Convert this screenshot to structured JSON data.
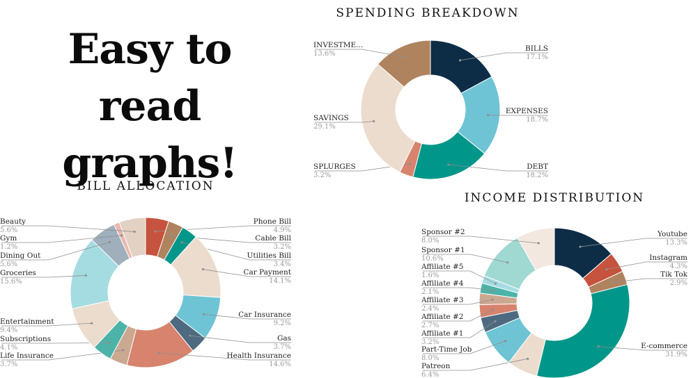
{
  "hero": {
    "line1": "Easy to",
    "line2": "read graphs!"
  },
  "chart_data": [
    {
      "type": "pie",
      "title": "SPENDING BREAKDOWN",
      "unit": "%",
      "slices": [
        {
          "label": "BILLS",
          "value": 17.1,
          "pct": "17.1%",
          "color": "#0d2d46"
        },
        {
          "label": "EXPENSES",
          "value": 18.7,
          "pct": "18.7%",
          "color": "#6ec4d4"
        },
        {
          "label": "DEBT",
          "value": 18.2,
          "pct": "18.2%",
          "color": "#00968a"
        },
        {
          "label": "SPLURGES",
          "value": 3.2,
          "pct": "3.2%",
          "color": "#d7836d"
        },
        {
          "label": "SAVINGS",
          "value": 29.1,
          "pct": "29.1%",
          "color": "#ecdccd"
        },
        {
          "label": "INVESTME...",
          "value": 13.6,
          "pct": "13.6%",
          "color": "#b0835f"
        }
      ]
    },
    {
      "type": "pie",
      "title": "BILL ALLOCATION",
      "unit": "%",
      "slices": [
        {
          "label": "Phone Bill",
          "value": 4.9,
          "pct": "4.9%",
          "color": "#c6533d"
        },
        {
          "label": "Cable Bill",
          "value": 3.2,
          "pct": "3.2%",
          "color": "#b0835f"
        },
        {
          "label": "Utilities Bill",
          "value": 3.4,
          "pct": "3.4%",
          "color": "#00968a"
        },
        {
          "label": "Car Payment",
          "value": 14.1,
          "pct": "14.1%",
          "color": "#ecdccd"
        },
        {
          "label": "Car Insurance",
          "value": 9.2,
          "pct": "9.2%",
          "color": "#6ec4d4"
        },
        {
          "label": "Gas",
          "value": 3.7,
          "pct": "3.7%",
          "color": "#4d6a80"
        },
        {
          "label": "Health Insurance",
          "value": 14.6,
          "pct": "14.6%",
          "color": "#d7836d"
        },
        {
          "label": "Life Insurance",
          "value": 3.7,
          "pct": "3.7%",
          "color": "#cba890"
        },
        {
          "label": "Subscriptions",
          "value": 4.1,
          "pct": "4.1%",
          "color": "#4db3a9"
        },
        {
          "label": "Entertainment",
          "value": 9.4,
          "pct": "9.4%",
          "color": "#ecdccd"
        },
        {
          "label": "Groceries",
          "value": 15.6,
          "pct": "15.6%",
          "color": "#a5dce2"
        },
        {
          "label": "Dining Out",
          "value": 5.6,
          "pct": "5.6%",
          "color": "#9fafbb"
        },
        {
          "label": "Gym",
          "value": 1.2,
          "pct": "1.2%",
          "color": "#e9b7ae"
        },
        {
          "label": "Beauty",
          "value": 5.6,
          "pct": "5.6%",
          "color": "#e3d1c3"
        }
      ]
    },
    {
      "type": "pie",
      "title": "INCOME DISTRIBUTION",
      "unit": "%",
      "slices": [
        {
          "label": "Youtube",
          "value": 13.3,
          "pct": "13.3%",
          "color": "#0d2d46"
        },
        {
          "label": "Instagram",
          "value": 4.3,
          "pct": "4.3%",
          "color": "#c6533d"
        },
        {
          "label": "Tik Tok",
          "value": 2.9,
          "pct": "2.9%",
          "color": "#b0835f"
        },
        {
          "label": "E-commerce",
          "value": 31.9,
          "pct": "31.9%",
          "color": "#00968a"
        },
        {
          "label": "Patreon",
          "value": 6.4,
          "pct": "6.4%",
          "color": "#ecdccd"
        },
        {
          "label": "Part-Time Job",
          "value": 8.0,
          "pct": "8.0%",
          "color": "#6ec4d4"
        },
        {
          "label": "Affiliate #1",
          "value": 3.2,
          "pct": "3.2%",
          "color": "#4d6a80"
        },
        {
          "label": "Affiliate #2",
          "value": 2.7,
          "pct": "2.7%",
          "color": "#d7836d"
        },
        {
          "label": "Affiliate #3",
          "value": 2.4,
          "pct": "2.4%",
          "color": "#cba890"
        },
        {
          "label": "Affiliate #4",
          "value": 2.1,
          "pct": "2.1%",
          "color": "#4db3a9"
        },
        {
          "label": "Affiliate #5",
          "value": 1.6,
          "pct": "1.6%",
          "color": "#a5dce2"
        },
        {
          "label": "Sponsor #1",
          "value": 10.6,
          "pct": "10.6%",
          "color": "#a0d8d2"
        },
        {
          "label": "Sponsor #2",
          "value": 8.0,
          "pct": "8.0%",
          "color": "#f3e8df"
        }
      ]
    }
  ]
}
